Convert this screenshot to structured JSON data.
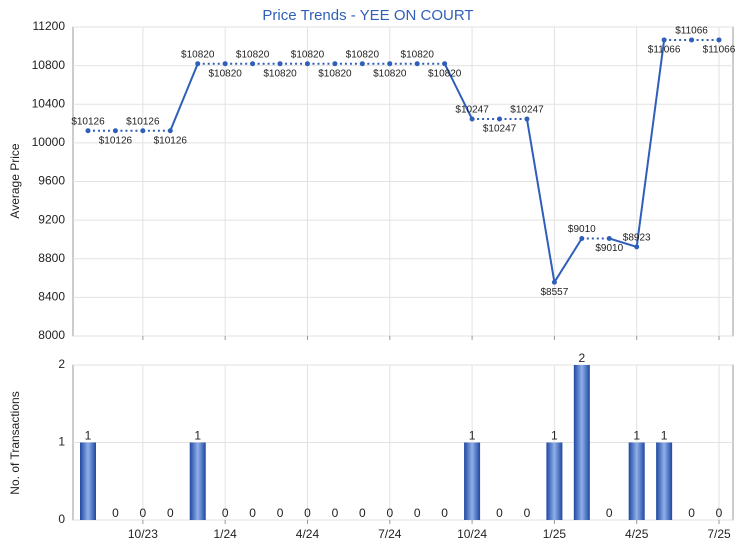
{
  "chart_data": [
    {
      "type": "line",
      "title": "Price Trends - YEE ON COURT",
      "y_label": "Average Price",
      "categories": [
        null,
        null,
        "10/23",
        null,
        null,
        "1/24",
        null,
        null,
        "4/24",
        null,
        null,
        "7/24",
        null,
        null,
        "10/24",
        null,
        null,
        "1/25",
        null,
        null,
        "4/25",
        null,
        null,
        "7/25"
      ],
      "series": [
        {
          "name": "Average Price",
          "color": "#2f5fb8",
          "values": [
            10126,
            10126,
            10126,
            10126,
            10820,
            10820,
            10820,
            10820,
            10820,
            10820,
            10820,
            10820,
            10820,
            10820,
            10247,
            10247,
            10247,
            8557,
            9010,
            9010,
            8923,
            11066,
            11066,
            11066
          ],
          "value_labels": [
            "$10126",
            "$10126",
            "$10126",
            "$10126",
            "$10820",
            "$10820",
            "$10820",
            "$10820",
            "$10820",
            "$10820",
            "$10820",
            "$10820",
            "$10820",
            "$10820",
            "$10247",
            "$10247",
            "$10247",
            "$8557",
            "$9010",
            "$9010",
            "$8923",
            "$11066",
            "$11066",
            "$11066"
          ]
        }
      ],
      "ylim": [
        8000,
        11200
      ],
      "yticks": [
        8000,
        8400,
        8800,
        9200,
        9600,
        10000,
        10400,
        10800,
        11200
      ],
      "grid": true
    },
    {
      "type": "bar",
      "y_label": "No. of Transactions",
      "categories": [
        null,
        null,
        "10/23",
        null,
        null,
        "1/24",
        null,
        null,
        "4/24",
        null,
        null,
        "7/24",
        null,
        null,
        "10/24",
        null,
        null,
        "1/25",
        null,
        null,
        "4/25",
        null,
        null,
        "7/25"
      ],
      "values": [
        1,
        0,
        0,
        0,
        1,
        0,
        0,
        0,
        0,
        0,
        0,
        0,
        0,
        0,
        1,
        0,
        0,
        1,
        2,
        0,
        1,
        1,
        0,
        0
      ],
      "color": "#2f5fb8",
      "ylim": [
        0,
        2
      ],
      "yticks": [
        0,
        1,
        2
      ],
      "grid": true
    }
  ]
}
